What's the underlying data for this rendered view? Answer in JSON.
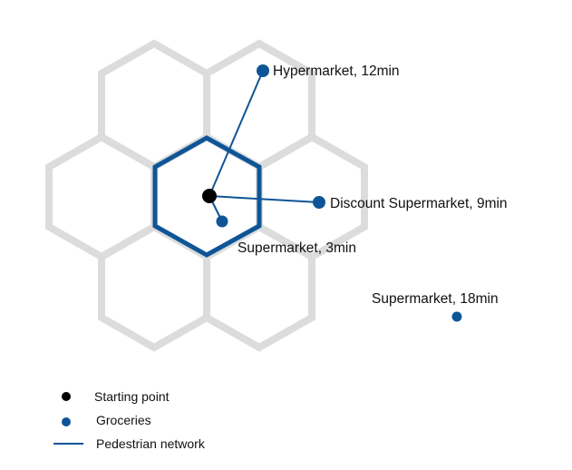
{
  "diagram": {
    "shops": [
      {
        "label": "Hypermarket, 12min"
      },
      {
        "label": "Discount Supermarket, 9min"
      },
      {
        "label": "Supermarket, 3min"
      },
      {
        "label": "Supermarket, 18min"
      }
    ],
    "colors": {
      "hex_grid": "#dcdcdc",
      "highlight_hex": "#0e5597",
      "network": "#0e5597",
      "groceries": "#0e5597",
      "starting_point": "#000000"
    }
  },
  "legend": {
    "starting_point": "Starting point",
    "groceries": "Groceries",
    "network": "Pedestrian network"
  }
}
